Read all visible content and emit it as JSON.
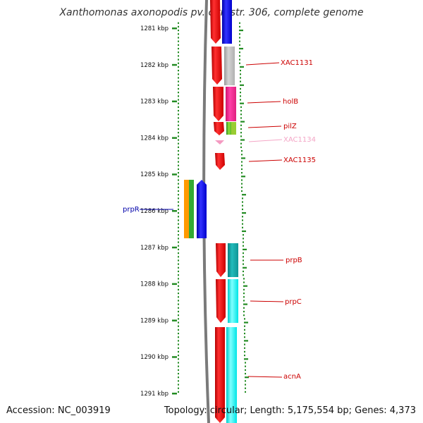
{
  "title": "Xanthomonas axonopodis pv. citri str. 306, complete genome",
  "footer": {
    "accession": "Accession: NC_003919",
    "topology": "Topology: circular; Length: 5,175,554 bp; Genes: 4,373"
  },
  "scale": {
    "unit": "kbp",
    "ticks": [
      1281,
      1282,
      1283,
      1284,
      1285,
      1286,
      1287,
      1288,
      1289,
      1290,
      1291
    ]
  },
  "gene_labels": [
    {
      "name": "XAC1131",
      "color": "#cc0000"
    },
    {
      "name": "holB",
      "color": "#cc0000"
    },
    {
      "name": "pilZ",
      "color": "#cc0000"
    },
    {
      "name": "XAC1134",
      "color": "#f4a6c6"
    },
    {
      "name": "XAC1135",
      "color": "#cc0000"
    },
    {
      "name": "prpB",
      "color": "#cc0000"
    },
    {
      "name": "prpC",
      "color": "#cc0000"
    },
    {
      "name": "acnA",
      "color": "#cc0000"
    },
    {
      "name": "prpR",
      "color": "#0000aa"
    }
  ],
  "colors": {
    "forward_gene": "#ff0000",
    "reverse_gene": "#0000ff",
    "tick": "#228b22",
    "backbone": "#7a7a7a",
    "cog_categories": [
      "#1a1aff",
      "#c0c0c0",
      "#ff2d9b",
      "#7ccd2a",
      "#f49ac1",
      "#11aaaa",
      "#00ffff",
      "#ff9900",
      "#33aa33"
    ]
  }
}
